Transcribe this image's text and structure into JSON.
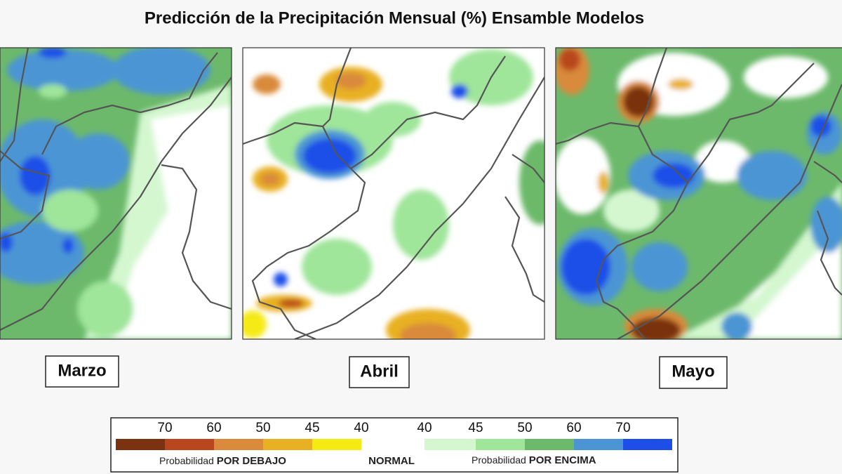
{
  "header": {
    "title": "Predicción de la Precipitación Mensual (%) Ensamble Modelos"
  },
  "panels": [
    {
      "label": "Marzo"
    },
    {
      "label": "Abril"
    },
    {
      "label": "Mayo"
    }
  ],
  "legend": {
    "ticks": [
      "70",
      "60",
      "50",
      "45",
      "40",
      "40",
      "45",
      "50",
      "60",
      "70"
    ],
    "colors": [
      "#7a3210",
      "#b9461f",
      "#d98a3a",
      "#e8b023",
      "#f5ea14",
      "#ffffff",
      "#d4f7d0",
      "#9fe59a",
      "#6cb96b",
      "#4b95d4",
      "#1d4fe8"
    ],
    "below_prefix": "Probabilidad",
    "below": "POR DEBAJO",
    "normal": "NORMAL",
    "above_prefix": "Probabilidad",
    "above": "POR ENCIMA"
  }
}
